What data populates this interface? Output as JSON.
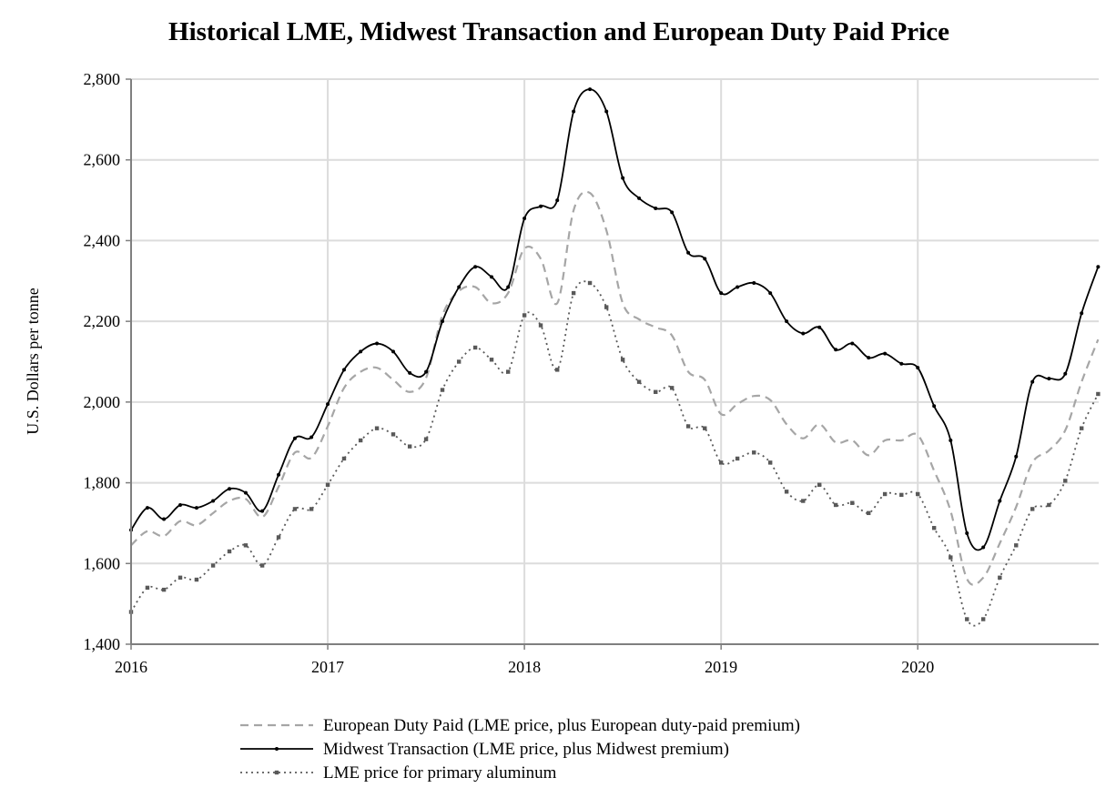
{
  "chart_data": {
    "type": "line",
    "title": "Historical LME, Midwest Transaction and European Duty Paid Price",
    "xlabel": "",
    "ylabel": "U.S. Dollars per tonne",
    "xlim": [
      2016,
      2020.92
    ],
    "ylim": [
      1400,
      2800
    ],
    "x_ticks": [
      2016,
      2017,
      2018,
      2019,
      2020
    ],
    "x_tick_labels": [
      "2016",
      "2017",
      "2018",
      "2019",
      "2020"
    ],
    "y_ticks": [
      1400,
      1600,
      1800,
      2000,
      2200,
      2400,
      2600,
      2800
    ],
    "y_tick_labels": [
      "1,400",
      "1,600",
      "1,800",
      "2,000",
      "2,200",
      "2,400",
      "2,600",
      "2,800"
    ],
    "grid": true,
    "legend_position": "bottom-center",
    "x": [
      2016.0,
      2016.083,
      2016.167,
      2016.25,
      2016.333,
      2016.417,
      2016.5,
      2016.583,
      2016.667,
      2016.75,
      2016.833,
      2016.917,
      2017.0,
      2017.083,
      2017.167,
      2017.25,
      2017.333,
      2017.417,
      2017.5,
      2017.583,
      2017.667,
      2017.75,
      2017.833,
      2017.917,
      2018.0,
      2018.083,
      2018.167,
      2018.25,
      2018.333,
      2018.417,
      2018.5,
      2018.583,
      2018.667,
      2018.75,
      2018.833,
      2018.917,
      2019.0,
      2019.083,
      2019.167,
      2019.25,
      2019.333,
      2019.417,
      2019.5,
      2019.583,
      2019.667,
      2019.75,
      2019.833,
      2019.917,
      2020.0,
      2020.083,
      2020.167,
      2020.25,
      2020.333,
      2020.417,
      2020.5,
      2020.583,
      2020.667,
      2020.75,
      2020.833,
      2020.917
    ],
    "series": [
      {
        "name": "European Duty Paid (LME price, plus European duty-paid premium)",
        "style": "dashed",
        "color": "#a6a6a6",
        "values": [
          1645,
          1680,
          1668,
          1705,
          1695,
          1725,
          1755,
          1760,
          1715,
          1790,
          1875,
          1862,
          1940,
          2035,
          2075,
          2085,
          2055,
          2025,
          2060,
          2215,
          2275,
          2285,
          2245,
          2270,
          2380,
          2355,
          2245,
          2475,
          2518,
          2425,
          2245,
          2205,
          2185,
          2165,
          2075,
          2055,
          1970,
          1995,
          2015,
          2005,
          1945,
          1910,
          1945,
          1900,
          1905,
          1868,
          1905,
          1905,
          1918,
          1830,
          1730,
          1562,
          1565,
          1650,
          1740,
          1850,
          1880,
          1930,
          2050,
          2155
        ]
      },
      {
        "name": "Midwest Transaction (LME price, plus Midwest premium)",
        "style": "solid",
        "color": "#000000",
        "values": [
          1683,
          1738,
          1710,
          1745,
          1738,
          1755,
          1785,
          1775,
          1730,
          1820,
          1910,
          1913,
          1995,
          2080,
          2125,
          2145,
          2125,
          2072,
          2075,
          2200,
          2285,
          2335,
          2310,
          2285,
          2455,
          2485,
          2500,
          2720,
          2775,
          2720,
          2555,
          2505,
          2480,
          2470,
          2370,
          2355,
          2270,
          2285,
          2295,
          2270,
          2200,
          2170,
          2185,
          2130,
          2145,
          2110,
          2120,
          2095,
          2085,
          1990,
          1905,
          1675,
          1640,
          1755,
          1865,
          2050,
          2058,
          2070,
          2220,
          2335
        ]
      },
      {
        "name": "LME price for primary aluminum",
        "style": "dotted",
        "color": "#595959",
        "values": [
          1480,
          1540,
          1535,
          1565,
          1560,
          1595,
          1630,
          1645,
          1595,
          1665,
          1735,
          1735,
          1795,
          1860,
          1905,
          1935,
          1920,
          1890,
          1908,
          2030,
          2100,
          2135,
          2105,
          2075,
          2215,
          2190,
          2080,
          2270,
          2295,
          2235,
          2105,
          2050,
          2025,
          2035,
          1940,
          1935,
          1850,
          1860,
          1875,
          1850,
          1778,
          1755,
          1795,
          1745,
          1750,
          1725,
          1772,
          1770,
          1772,
          1688,
          1615,
          1462,
          1462,
          1565,
          1645,
          1735,
          1745,
          1805,
          1935,
          2020
        ]
      }
    ]
  }
}
